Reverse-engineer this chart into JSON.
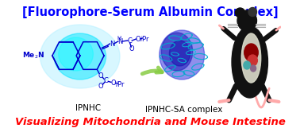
{
  "title": "[Fluorophore-Serum Albumin Complex]",
  "title_color": "#0000FF",
  "title_fontsize": 10.5,
  "subtitle": "Visualizing Mitochondria and Mouse Intestine",
  "subtitle_color": "#FF0000",
  "subtitle_fontsize": 9.5,
  "label_ipnhc": "IPNHC",
  "label_complex": "IPNHC-SA complex",
  "label_color": "#000000",
  "label_fontsize": 7.5,
  "bg_color": "#FFFFFF",
  "chem_color": "#0000CC",
  "glow_cyan": "#00E5FF",
  "glow_light": "#B3F0FF",
  "protein_helix": "#00AACC",
  "blue_blob": "#2222EE",
  "arrow_green": "#88CC44",
  "mouse_body": "#111111",
  "mouse_organ_dark": "#8B0000",
  "mouse_organ_mid": "#CC3333",
  "mouse_organ_teal": "#44AAAA",
  "mouse_tail": "#FFAAAA",
  "mouse_white": "#DDDDCC"
}
